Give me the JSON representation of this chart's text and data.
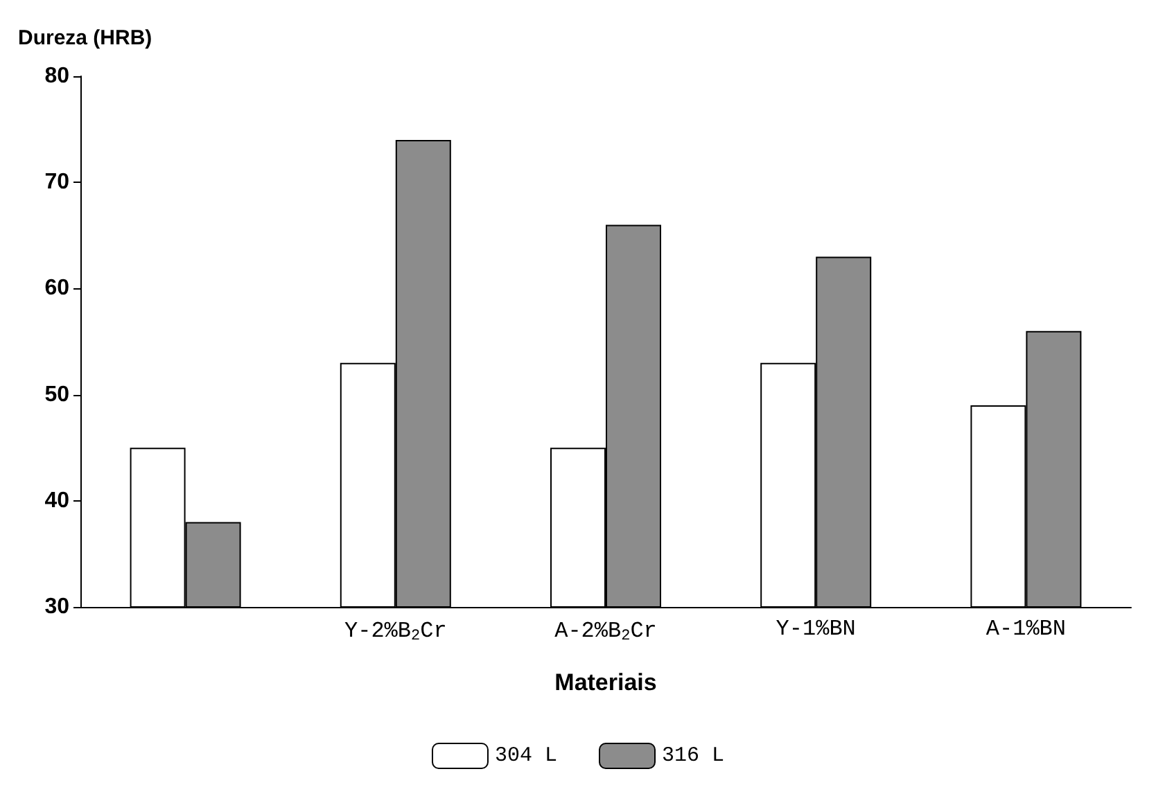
{
  "chart_data": {
    "type": "bar",
    "xlabel": "Materiais",
    "ylabel": "Dureza (HRB)",
    "categories": [
      null,
      "Y-2%B$_{2}$Cr",
      "A-2%B$_{2}$Cr",
      "Y-1%BN",
      "A-1%BN"
    ],
    "series": [
      {
        "name": "304 L",
        "color": "#ffffff",
        "values": [
          45,
          53,
          45,
          53,
          49
        ]
      },
      {
        "name": "316 L",
        "color": "#8c8c8c",
        "values": [
          38,
          74,
          66,
          63,
          56
        ]
      }
    ],
    "ylim": [
      30,
      80
    ],
    "yticks": [
      30,
      40,
      50,
      60,
      70,
      80
    ],
    "grid": false,
    "legend": "bottom"
  }
}
